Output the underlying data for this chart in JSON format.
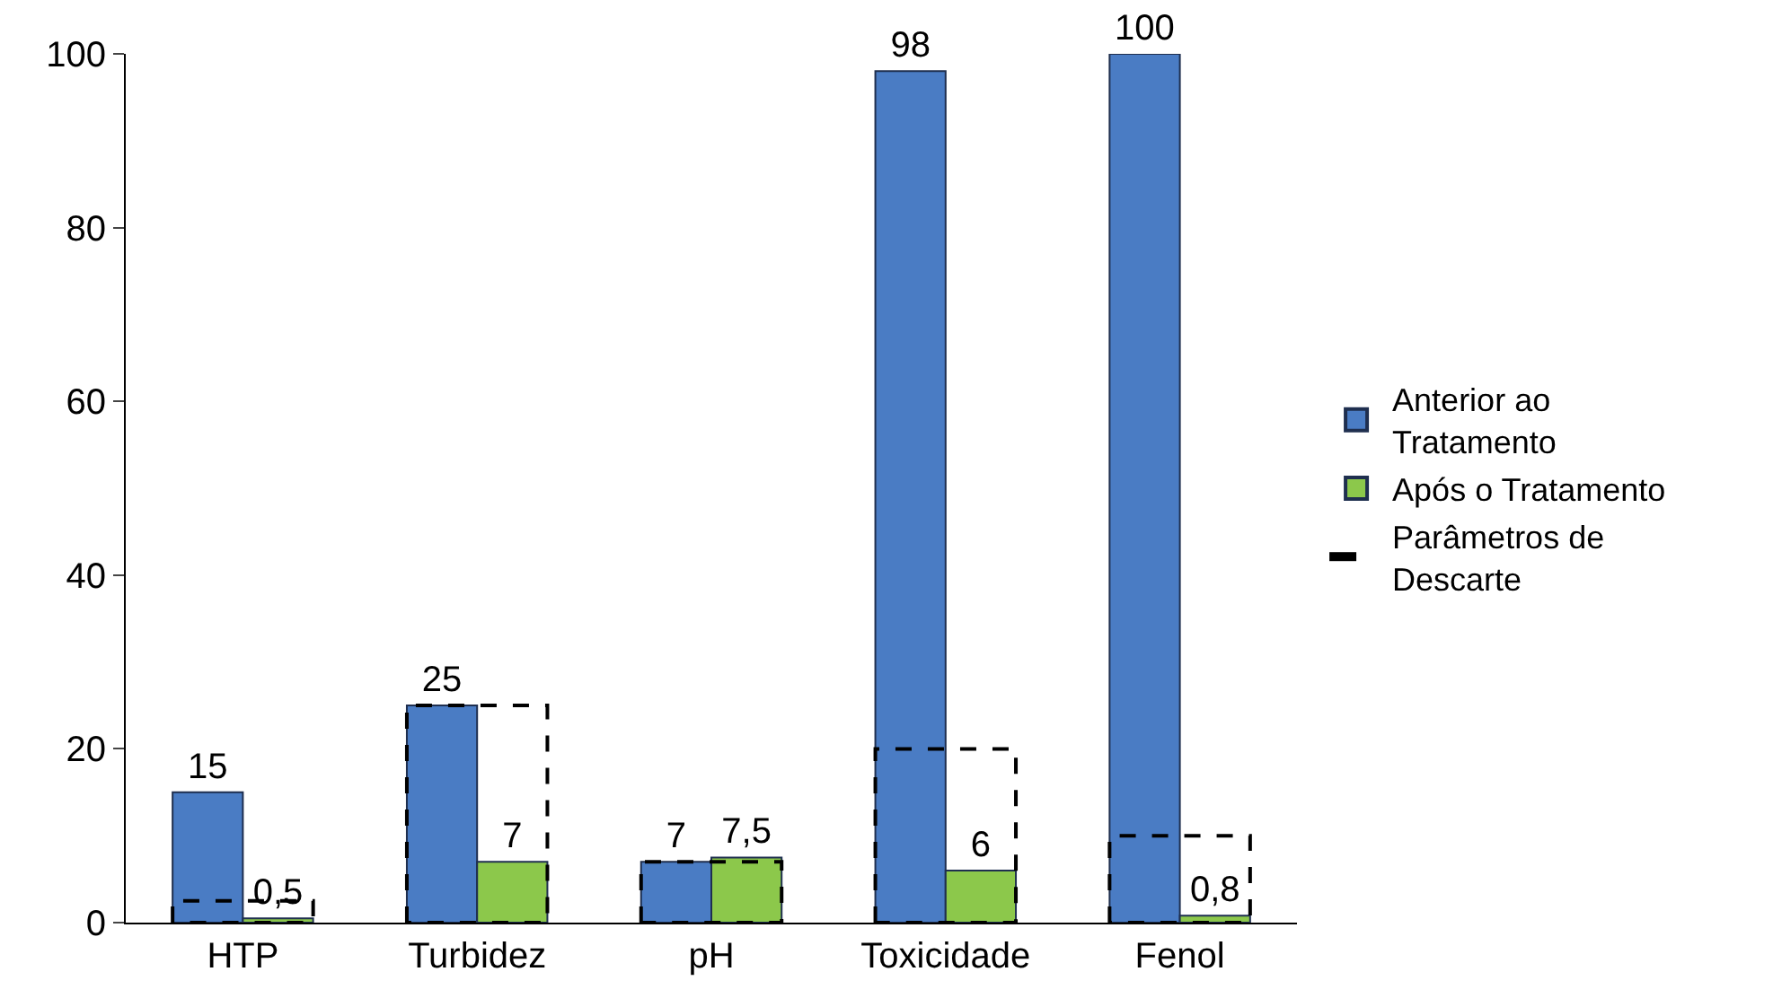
{
  "chart_data": {
    "type": "bar",
    "categories": [
      "HTP",
      "Turbidez",
      "pH",
      "Toxicidade",
      "Fenol"
    ],
    "series": [
      {
        "name": "Anterior ao Tratamento",
        "color": "#4a7cc4",
        "values": [
          15,
          25,
          7,
          98,
          100
        ],
        "value_labels": [
          "15",
          "25",
          "7",
          "98",
          "100"
        ]
      },
      {
        "name": "Após o Tratamento",
        "color": "#8cc84b",
        "values": [
          0.5,
          7,
          7.5,
          6,
          0.8
        ],
        "value_labels": [
          "0,5",
          "7",
          "7,5",
          "6",
          "0,8"
        ]
      },
      {
        "name": "Parâmetros de Descarte",
        "color": "#000000",
        "values": [
          2.5,
          25,
          7,
          20,
          10
        ],
        "line_style": "dashed"
      }
    ],
    "ylim": [
      0,
      100
    ],
    "yticks": [
      0,
      20,
      40,
      60,
      80,
      100
    ],
    "legend": "right"
  }
}
